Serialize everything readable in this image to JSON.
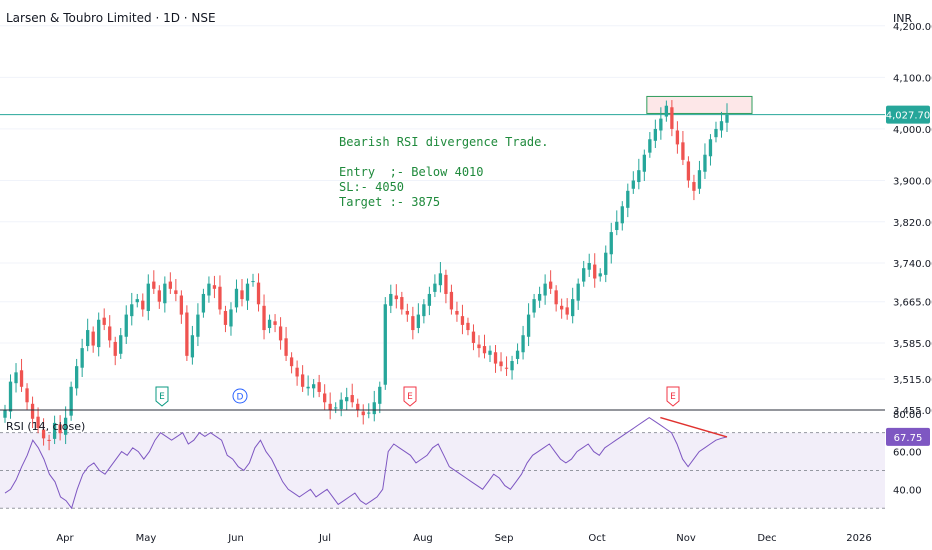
{
  "header": {
    "title": "Larsen & Toubro Limited · 1D · NSE",
    "currency": "INR"
  },
  "annotation": {
    "line1": "Bearish RSI divergence Trade.",
    "line2": "Entry  ;- Below 4010",
    "line3": "SL:- 4050",
    "line4": "Target :- 3875"
  },
  "chart_data": {
    "type": "candlestick",
    "title": "Larsen & Toubro Limited · 1D · NSE",
    "ylabel": "INR",
    "ylim": [
      3455,
      4250
    ],
    "yticks": [
      4200,
      4100,
      4000,
      3900,
      3820,
      3740,
      3665,
      3585,
      3515,
      3455
    ],
    "ytick_labels": [
      "4,200.00",
      "4,100.00",
      "4,000.00",
      "3,900.00",
      "3,820.00",
      "3,740.00",
      "3,665.00",
      "3,585.00",
      "3,515.00",
      "3,455.00"
    ],
    "last_price": 4027.7,
    "last_price_label": "4,027.70",
    "price_line": 4027.7,
    "resistance_box": [
      4030,
      4063
    ],
    "x_labels": [
      "Apr",
      "May",
      "Jun",
      "Jul",
      "Aug",
      "Sep",
      "Oct",
      "Nov",
      "Dec",
      "2026"
    ],
    "events": [
      {
        "label": "E",
        "kind": "earnings",
        "month": "May",
        "price": 3505
      },
      {
        "label": "D",
        "kind": "dividend",
        "month": "Jun",
        "price": 3505
      },
      {
        "label": "E",
        "kind": "earnings",
        "month": "Jul-end",
        "price": 3475
      },
      {
        "label": "E",
        "kind": "earnings",
        "month": "Oct-end",
        "price": 3475
      }
    ],
    "up_color": "#26a69a",
    "down_color": "#ef5350",
    "series": [
      {
        "name": "Price",
        "close": [
          3455,
          3510,
          3528,
          3500,
          3470,
          3438,
          3420,
          3400,
          3395,
          3430,
          3410,
          3440,
          3500,
          3540,
          3575,
          3610,
          3580,
          3630,
          3620,
          3590,
          3560,
          3600,
          3640,
          3660,
          3670,
          3650,
          3700,
          3690,
          3665,
          3700,
          3690,
          3680,
          3640,
          3560,
          3600,
          3640,
          3680,
          3700,
          3690,
          3650,
          3620,
          3650,
          3690,
          3670,
          3700,
          3705,
          3660,
          3610,
          3630,
          3620,
          3590,
          3560,
          3540,
          3520,
          3500,
          3500,
          3505,
          3490,
          3470,
          3455,
          3460,
          3475,
          3480,
          3470,
          3455,
          3445,
          3450,
          3470,
          3500,
          3660,
          3680,
          3670,
          3650,
          3640,
          3610,
          3640,
          3660,
          3680,
          3700,
          3720,
          3680,
          3650,
          3640,
          3620,
          3610,
          3585,
          3575,
          3565,
          3570,
          3545,
          3540,
          3535,
          3550,
          3570,
          3600,
          3640,
          3670,
          3680,
          3700,
          3690,
          3660,
          3650,
          3640,
          3670,
          3700,
          3730,
          3740,
          3710,
          3720,
          3760,
          3800,
          3820,
          3850,
          3880,
          3900,
          3920,
          3950,
          3980,
          4000,
          4020,
          4045,
          4000,
          3970,
          3940,
          3900,
          3880,
          3920,
          3950,
          3980,
          4000,
          4015,
          4027.7
        ]
      }
    ],
    "rsi": {
      "name": "RSI (14, close)",
      "title": "RSI (14, close)",
      "ylim": [
        28,
        82
      ],
      "levels": [
        70,
        50,
        30
      ],
      "yticks": [
        80,
        60,
        40
      ],
      "ytick_labels": [
        "80.00",
        "60.00",
        "40.00"
      ],
      "last": 67.75,
      "last_label": "67.75",
      "values": [
        38,
        40,
        45,
        52,
        58,
        66,
        62,
        56,
        48,
        44,
        36,
        34,
        30,
        40,
        48,
        52,
        54,
        50,
        48,
        52,
        56,
        60,
        58,
        62,
        60,
        56,
        60,
        66,
        70,
        68,
        66,
        68,
        70,
        64,
        66,
        70,
        68,
        70,
        68,
        66,
        58,
        56,
        52,
        50,
        54,
        62,
        66,
        60,
        56,
        50,
        44,
        40,
        38,
        36,
        38,
        40,
        36,
        38,
        40,
        36,
        32,
        34,
        36,
        38,
        34,
        32,
        34,
        36,
        40,
        60,
        64,
        62,
        60,
        58,
        54,
        56,
        58,
        62,
        64,
        58,
        52,
        50,
        48,
        46,
        44,
        42,
        40,
        44,
        48,
        46,
        42,
        40,
        44,
        48,
        54,
        58,
        60,
        62,
        64,
        60,
        56,
        54,
        56,
        60,
        62,
        64,
        60,
        58,
        62,
        64,
        66,
        68,
        70,
        72,
        74,
        76,
        78,
        76,
        74,
        72,
        70,
        64,
        56,
        52,
        56,
        60,
        62,
        64,
        66,
        67,
        67.75
      ]
    }
  }
}
